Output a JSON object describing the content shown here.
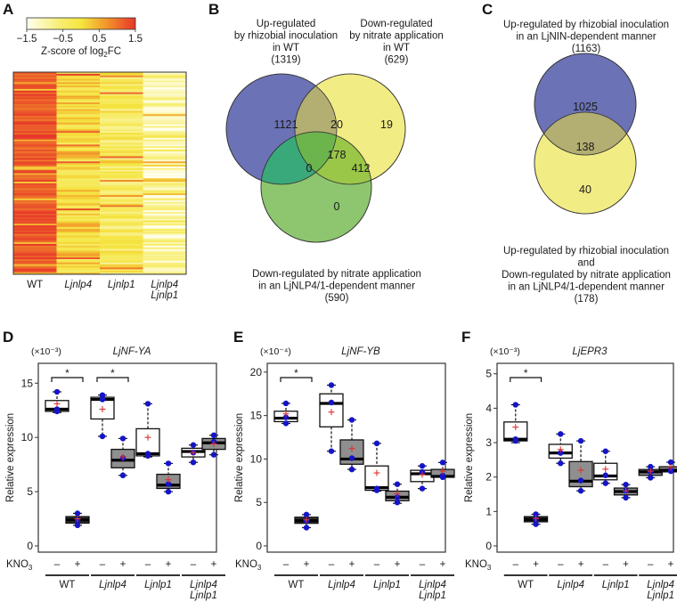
{
  "panels": {
    "A": {
      "letter": "A"
    },
    "B": {
      "letter": "B"
    },
    "C": {
      "letter": "C"
    },
    "D": {
      "letter": "D"
    },
    "E": {
      "letter": "E"
    },
    "F": {
      "letter": "F"
    }
  },
  "chart_data": [
    {
      "id": "A",
      "type": "heatmap",
      "title": "",
      "colorbar": {
        "label_pre": "Z-score of log",
        "label_sub": "2",
        "label_post": "FC",
        "ticks": [
          "−1.5",
          "−0.5",
          "0.5",
          "1.5"
        ],
        "range": [
          -1.5,
          1.5
        ],
        "colors": [
          "#fffff0",
          "#f5e84a",
          "#f29a2a",
          "#e8372a"
        ]
      },
      "columns": [
        {
          "line1": "WT",
          "line2": "",
          "italic": false
        },
        {
          "line1": "Ljnlp4",
          "line2": "",
          "italic": true
        },
        {
          "line1": "Ljnlp1",
          "line2": "",
          "italic": true
        },
        {
          "line1": "Ljnlp4",
          "line2": "Ljnlp1",
          "italic": true
        }
      ],
      "column_mean_z": [
        1.25,
        0.1,
        -0.35,
        -1.0
      ]
    },
    {
      "id": "B",
      "type": "venn",
      "sets": [
        {
          "name": "Up-regulated by rhizobial inoculation in WT",
          "lines": [
            "Up-regulated",
            "by rhizobial inoculation",
            "in WT",
            "(1319)"
          ],
          "total": 1319,
          "color": "#6b72b5"
        },
        {
          "name": "Down-regulated by nitrate application in WT",
          "lines": [
            "Down-regulated",
            "by nitrate application",
            "in WT",
            "(629)"
          ],
          "total": 629,
          "color": "#f2ec85"
        },
        {
          "name": "Down-regulated by nitrate application in an LjNLP4/1-dependent manner",
          "lines": [
            "Down-regulated by nitrate application",
            "in an LjNLP4/1-dependent manner",
            "(590)"
          ],
          "total": 590,
          "color": "#8dc66f"
        }
      ],
      "regions": {
        "only_1": "1121",
        "only_2": "19",
        "only_3": "0",
        "1_2": "20",
        "1_3": "0",
        "2_3": "412",
        "1_2_3": "178"
      }
    },
    {
      "id": "C",
      "type": "venn",
      "sets": [
        {
          "name": "Up-regulated by rhizobial inoculation in an LjNIN-dependent manner",
          "lines": [
            "Up-regulated by rhizobial inoculation",
            "in an LjNIN-dependent manner",
            "(1163)"
          ],
          "total": 1163,
          "color": "#6b72b5"
        },
        {
          "name": "Up-regulated by rhizobial inoculation and Down-regulated by nitrate application in an LjNLP4/1-dependent manner",
          "lines": [
            "Up-regulated by rhizobial inoculation",
            "and",
            "Down-regulated by nitrate application",
            "in an LjNLP4/1-dependent manner",
            "(178)"
          ],
          "total": 178,
          "color": "#f2ec85"
        }
      ],
      "regions": {
        "only_1": "1025",
        "both": "138",
        "only_2": "40"
      }
    },
    {
      "id": "D",
      "type": "box",
      "title": "LjNF-YA",
      "scale": "(×10⁻³)",
      "ylabel": "Relative expression",
      "ylim": [
        0,
        16.5
      ],
      "yticks": [
        0,
        5,
        10,
        15
      ],
      "treatment_label": "KNO",
      "treatment_sub": "3",
      "treatment_marks": [
        "–",
        "+",
        "–",
        "+",
        "–",
        "+",
        "–",
        "+"
      ],
      "groups": [
        {
          "line1": "WT",
          "line2": "",
          "italic": false
        },
        {
          "line1": "Ljnlp4",
          "line2": "",
          "italic": true
        },
        {
          "line1": "Ljnlp1",
          "line2": "",
          "italic": true
        },
        {
          "line1": "Ljnlp4",
          "line2": "Ljnlp1",
          "italic": true
        }
      ],
      "boxes": [
        {
          "q1": 12.4,
          "median": 12.6,
          "q3": 13.4,
          "min": 12.3,
          "max": 14.2,
          "mean": 13.1,
          "fill": "white",
          "points": [
            14.2,
            12.6,
            12.4
          ]
        },
        {
          "q1": 2.1,
          "median": 2.4,
          "q3": 2.7,
          "min": 1.9,
          "max": 3.0,
          "mean": 2.5,
          "fill": "black",
          "points": [
            3.0,
            2.4,
            1.9
          ]
        },
        {
          "q1": 11.7,
          "median": 13.5,
          "q3": 13.7,
          "min": 10.1,
          "max": 13.9,
          "mean": 12.6,
          "fill": "white",
          "points": [
            13.9,
            13.5,
            10.1
          ]
        },
        {
          "q1": 7.2,
          "median": 7.9,
          "q3": 8.9,
          "min": 6.5,
          "max": 9.9,
          "mean": 8.2,
          "fill": "gray",
          "points": [
            9.9,
            8.1,
            6.5
          ]
        },
        {
          "q1": 8.3,
          "median": 8.5,
          "q3": 10.8,
          "min": 8.2,
          "max": 13.1,
          "mean": 10.0,
          "fill": "white",
          "points": [
            13.1,
            8.5,
            8.3
          ]
        },
        {
          "q1": 5.3,
          "median": 5.6,
          "q3": 6.6,
          "min": 5.0,
          "max": 7.6,
          "mean": 6.1,
          "fill": "gray",
          "points": [
            7.6,
            5.7,
            5.0
          ]
        },
        {
          "q1": 8.2,
          "median": 8.7,
          "q3": 9.0,
          "min": 7.7,
          "max": 9.3,
          "mean": 8.6,
          "fill": "white",
          "points": [
            9.3,
            8.6,
            7.7
          ]
        },
        {
          "q1": 8.9,
          "median": 9.5,
          "q3": 9.9,
          "min": 8.4,
          "max": 10.2,
          "mean": 9.4,
          "fill": "gray",
          "points": [
            10.2,
            9.6,
            8.4
          ]
        }
      ],
      "significance": [
        {
          "from": 0,
          "to": 1,
          "label": "*"
        },
        {
          "from": 2,
          "to": 3,
          "label": "*"
        }
      ]
    },
    {
      "id": "E",
      "type": "box",
      "title": "LjNF-YB",
      "scale": "(×10⁻⁴)",
      "ylabel": "Relative expression",
      "ylim": [
        0,
        20.6
      ],
      "yticks": [
        0,
        5,
        10,
        15,
        20
      ],
      "treatment_label": "KNO",
      "treatment_sub": "3",
      "treatment_marks": [
        "–",
        "+",
        "–",
        "+",
        "–",
        "+",
        "–",
        "+"
      ],
      "groups": [
        {
          "line1": "WT",
          "line2": "",
          "italic": false
        },
        {
          "line1": "Ljnlp4",
          "line2": "",
          "italic": true
        },
        {
          "line1": "Ljnlp1",
          "line2": "",
          "italic": true
        },
        {
          "line1": "Ljnlp4",
          "line2": "Ljnlp1",
          "italic": true
        }
      ],
      "boxes": [
        {
          "q1": 14.3,
          "median": 14.7,
          "q3": 15.5,
          "min": 14.1,
          "max": 16.4,
          "mean": 15.2,
          "fill": "white",
          "points": [
            16.4,
            14.8,
            14.1
          ]
        },
        {
          "q1": 2.6,
          "median": 2.9,
          "q3": 3.3,
          "min": 2.1,
          "max": 3.6,
          "mean": 3.0,
          "fill": "black",
          "points": [
            3.6,
            2.9,
            2.1
          ]
        },
        {
          "q1": 13.7,
          "median": 16.4,
          "q3": 17.5,
          "min": 10.9,
          "max": 18.5,
          "mean": 15.4,
          "fill": "white",
          "points": [
            18.5,
            16.5,
            10.9
          ]
        },
        {
          "q1": 9.4,
          "median": 10.0,
          "q3": 12.2,
          "min": 8.8,
          "max": 14.5,
          "mean": 11.2,
          "fill": "gray",
          "points": [
            14.5,
            10.1,
            8.8
          ]
        },
        {
          "q1": 6.4,
          "median": 6.7,
          "q3": 9.2,
          "min": 6.3,
          "max": 11.8,
          "mean": 8.4,
          "fill": "white",
          "points": [
            11.8,
            6.6,
            6.4
          ]
        },
        {
          "q1": 5.2,
          "median": 5.6,
          "q3": 6.3,
          "min": 4.9,
          "max": 7.1,
          "mean": 6.0,
          "fill": "gray",
          "points": [
            7.1,
            5.6,
            5.0
          ]
        },
        {
          "q1": 7.4,
          "median": 8.3,
          "q3": 8.7,
          "min": 6.6,
          "max": 9.2,
          "mean": 8.2,
          "fill": "white",
          "points": [
            9.2,
            8.5,
            6.6
          ]
        },
        {
          "q1": 7.9,
          "median": 8.0,
          "q3": 8.8,
          "min": 7.9,
          "max": 9.6,
          "mean": 8.6,
          "fill": "gray",
          "points": [
            9.6,
            8.1,
            7.9
          ]
        }
      ],
      "significance": [
        {
          "from": 0,
          "to": 1,
          "label": "*"
        }
      ]
    },
    {
      "id": "F",
      "type": "box",
      "title": "LjEPR3",
      "scale": "(×10⁻³)",
      "ylabel": "Relative expression",
      "ylim": [
        0,
        5.2
      ],
      "yticks": [
        0,
        1,
        2,
        3,
        4,
        5
      ],
      "treatment_label": "KNO",
      "treatment_sub": "3",
      "treatment_marks": [
        "–",
        "+",
        "–",
        "+",
        "–",
        "+",
        "–",
        "+"
      ],
      "groups": [
        {
          "line1": "WT",
          "line2": "",
          "italic": false
        },
        {
          "line1": "Ljnlp4",
          "line2": "",
          "italic": true
        },
        {
          "line1": "Ljnlp1",
          "line2": "",
          "italic": true
        },
        {
          "line1": "Ljnlp4",
          "line2": "Ljnlp1",
          "italic": true
        }
      ],
      "boxes": [
        {
          "q1": 3.05,
          "median": 3.1,
          "q3": 3.6,
          "min": 3.0,
          "max": 4.1,
          "mean": 3.45,
          "fill": "white",
          "points": [
            4.1,
            3.1,
            3.05
          ]
        },
        {
          "q1": 0.7,
          "median": 0.77,
          "q3": 0.85,
          "min": 0.63,
          "max": 0.92,
          "mean": 0.8,
          "fill": "black",
          "points": [
            0.92,
            0.77,
            0.63
          ]
        },
        {
          "q1": 2.55,
          "median": 2.7,
          "q3": 2.95,
          "min": 2.4,
          "max": 3.25,
          "mean": 2.8,
          "fill": "white",
          "points": [
            3.25,
            2.7,
            2.4
          ]
        },
        {
          "q1": 1.72,
          "median": 1.88,
          "q3": 2.45,
          "min": 1.6,
          "max": 3.05,
          "mean": 2.2,
          "fill": "gray",
          "points": [
            3.05,
            1.9,
            1.6
          ]
        },
        {
          "q1": 1.92,
          "median": 2.03,
          "q3": 2.4,
          "min": 1.82,
          "max": 2.75,
          "mean": 2.23,
          "fill": "white",
          "points": [
            2.75,
            2.05,
            1.82
          ]
        },
        {
          "q1": 1.48,
          "median": 1.58,
          "q3": 1.68,
          "min": 1.4,
          "max": 1.78,
          "mean": 1.6,
          "fill": "gray",
          "points": [
            1.78,
            1.6,
            1.4
          ]
        },
        {
          "q1": 2.05,
          "median": 2.15,
          "q3": 2.22,
          "min": 1.98,
          "max": 2.3,
          "mean": 2.17,
          "fill": "gray",
          "points": [
            2.3,
            2.15,
            1.98
          ]
        },
        {
          "q1": 2.15,
          "median": 2.2,
          "q3": 2.3,
          "min": 2.15,
          "max": 2.43,
          "mean": 2.28,
          "fill": "gray",
          "points": [
            2.43,
            2.2,
            2.17
          ]
        }
      ],
      "significance": [
        {
          "from": 0,
          "to": 1,
          "label": "*"
        }
      ]
    }
  ]
}
